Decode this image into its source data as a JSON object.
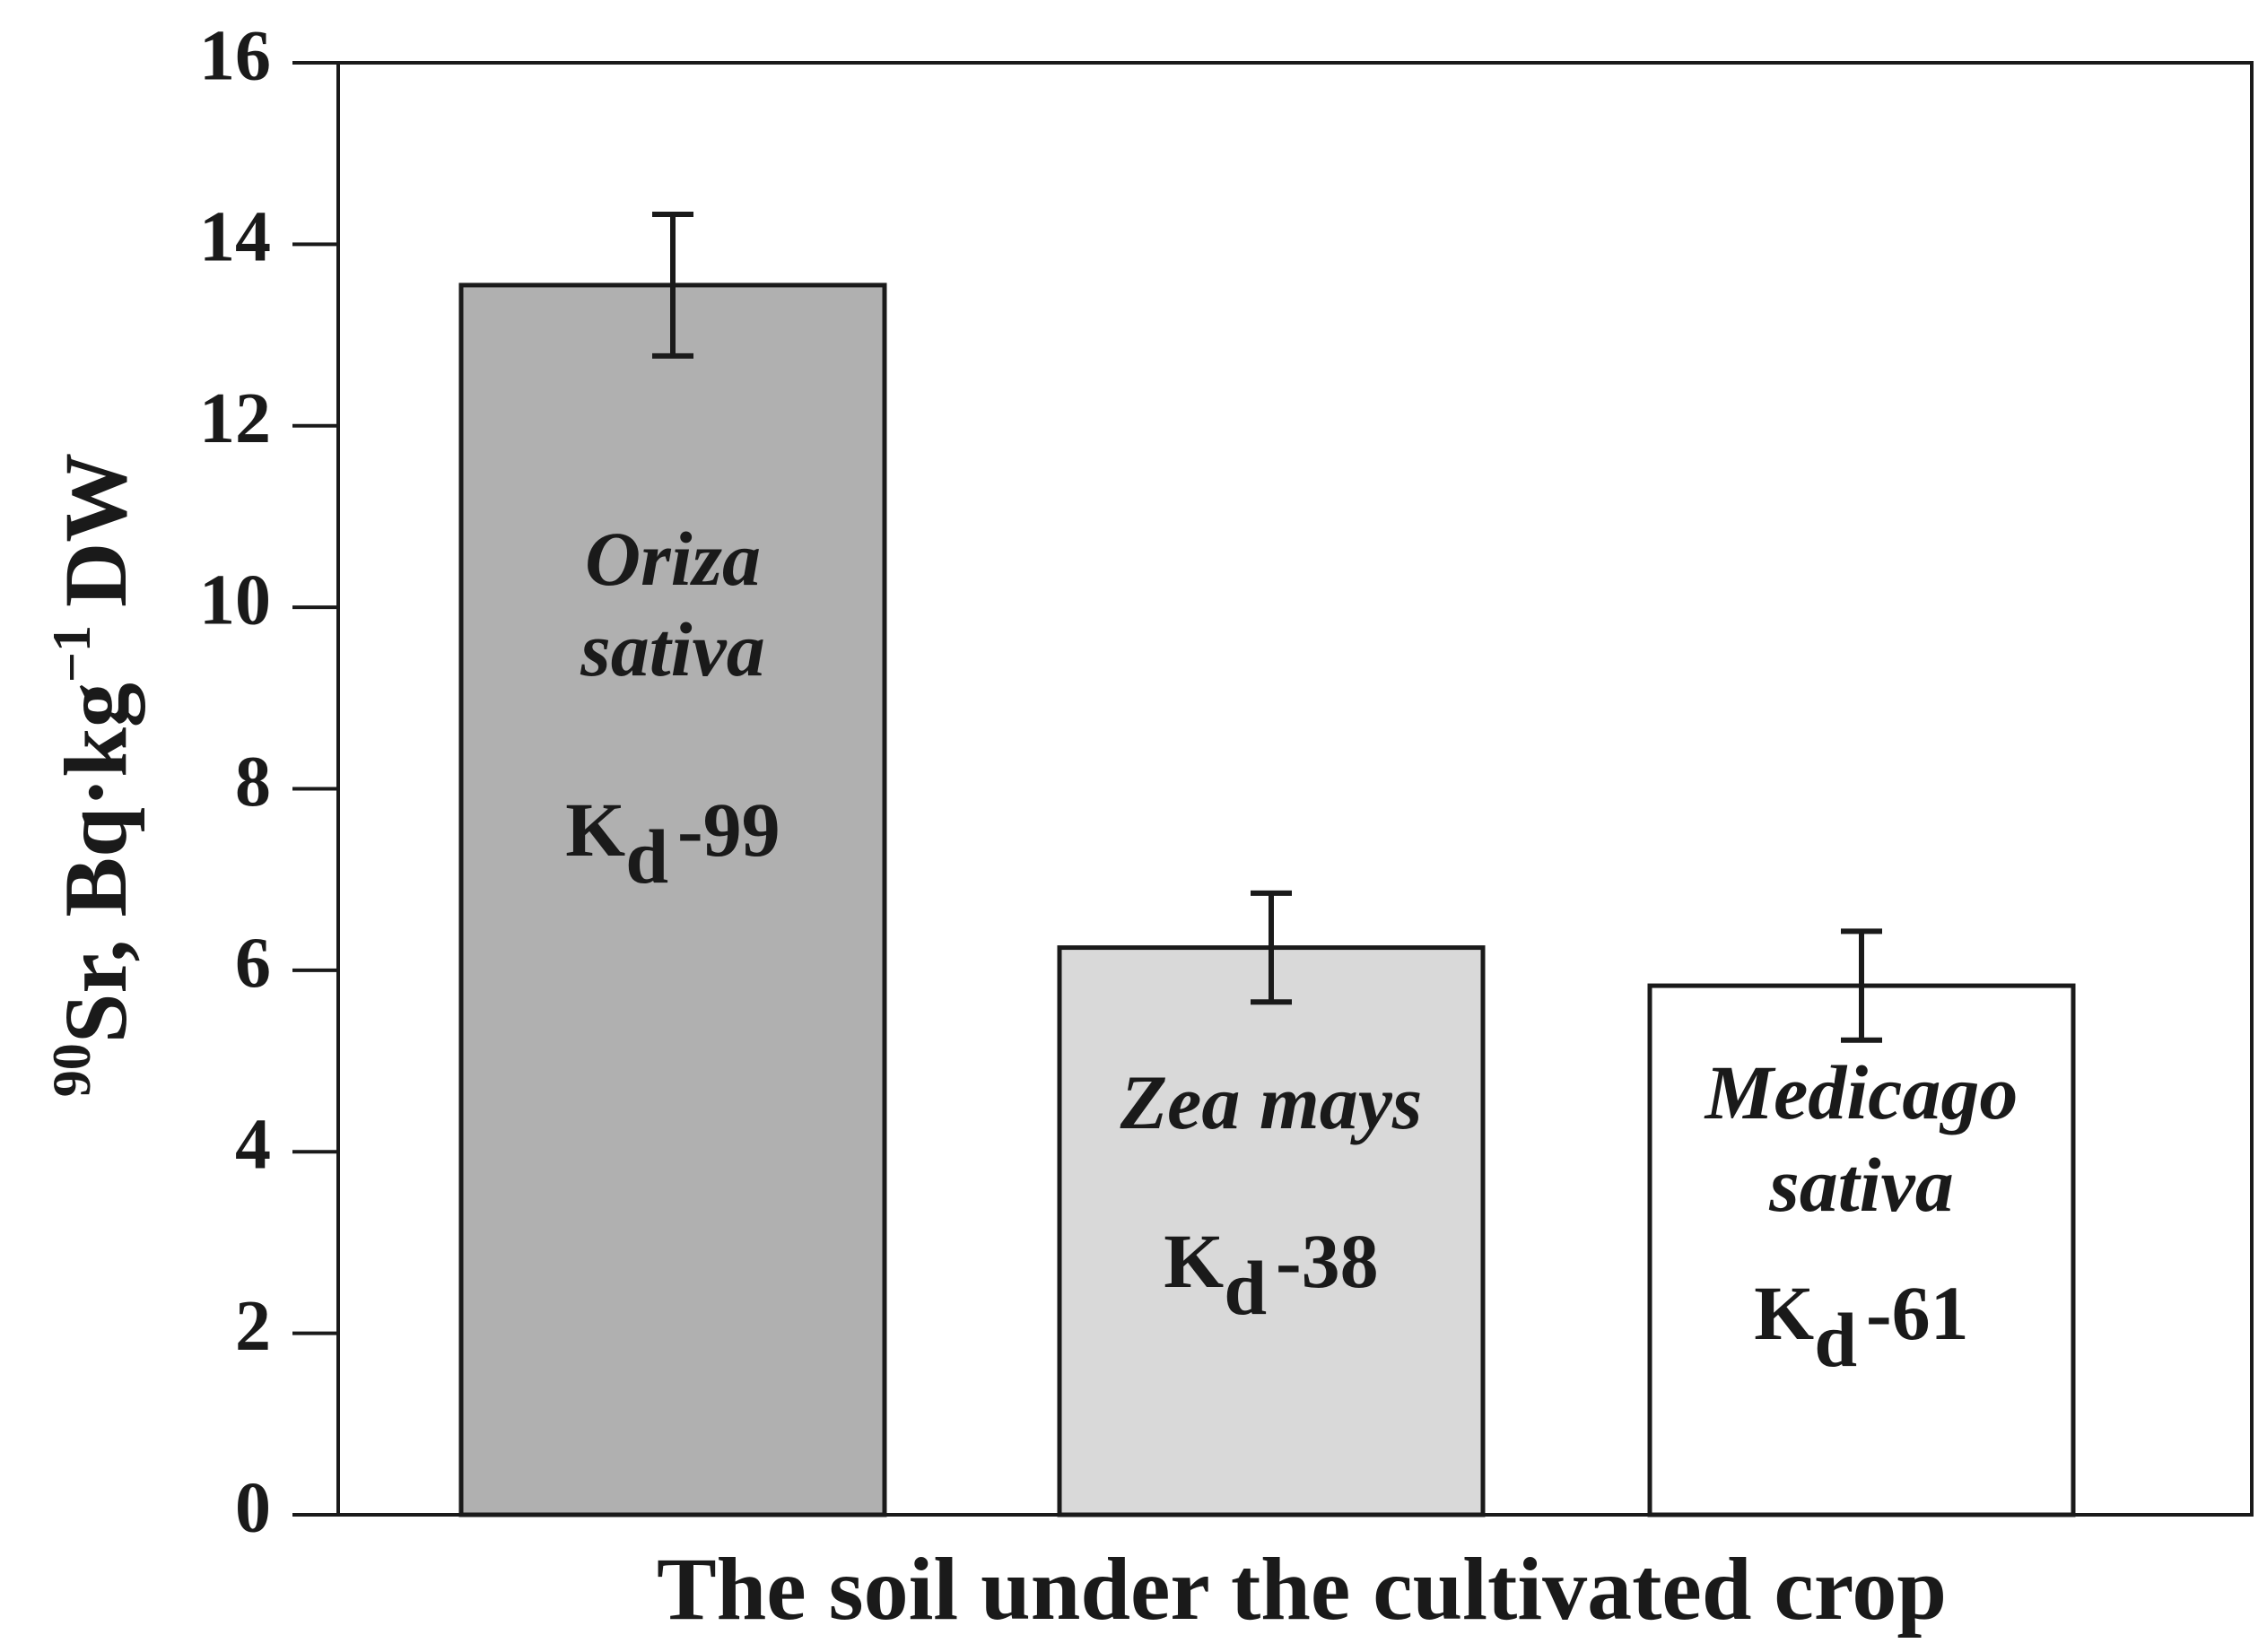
{
  "chart_data": {
    "type": "bar",
    "y_label": {
      "superscript": "90",
      "main": "Sr, Bq·kg",
      "exponent": "−1",
      "unit": "DW"
    },
    "x_label": "The soil under the cultivated crop",
    "categories": [
      [
        "Oriza",
        "sativa"
      ],
      [
        "Zea mays"
      ],
      [
        "Medicago",
        "sativa"
      ]
    ],
    "kd": [
      {
        "symbol": "K",
        "subscript": "d",
        "value": "-99"
      },
      {
        "symbol": "K",
        "subscript": "d",
        "value": "-38"
      },
      {
        "symbol": "K",
        "subscript": "d",
        "value": "-61"
      }
    ],
    "values": [
      13.55,
      6.25,
      5.83
    ],
    "errors": [
      0.78,
      0.6,
      0.6
    ],
    "colors": [
      "#b0b0b0",
      "#d9d9d9",
      "#ffffff"
    ],
    "ylim": [
      0,
      16
    ],
    "yticks": [
      0,
      2,
      4,
      6,
      8,
      10,
      12,
      14,
      16
    ]
  }
}
